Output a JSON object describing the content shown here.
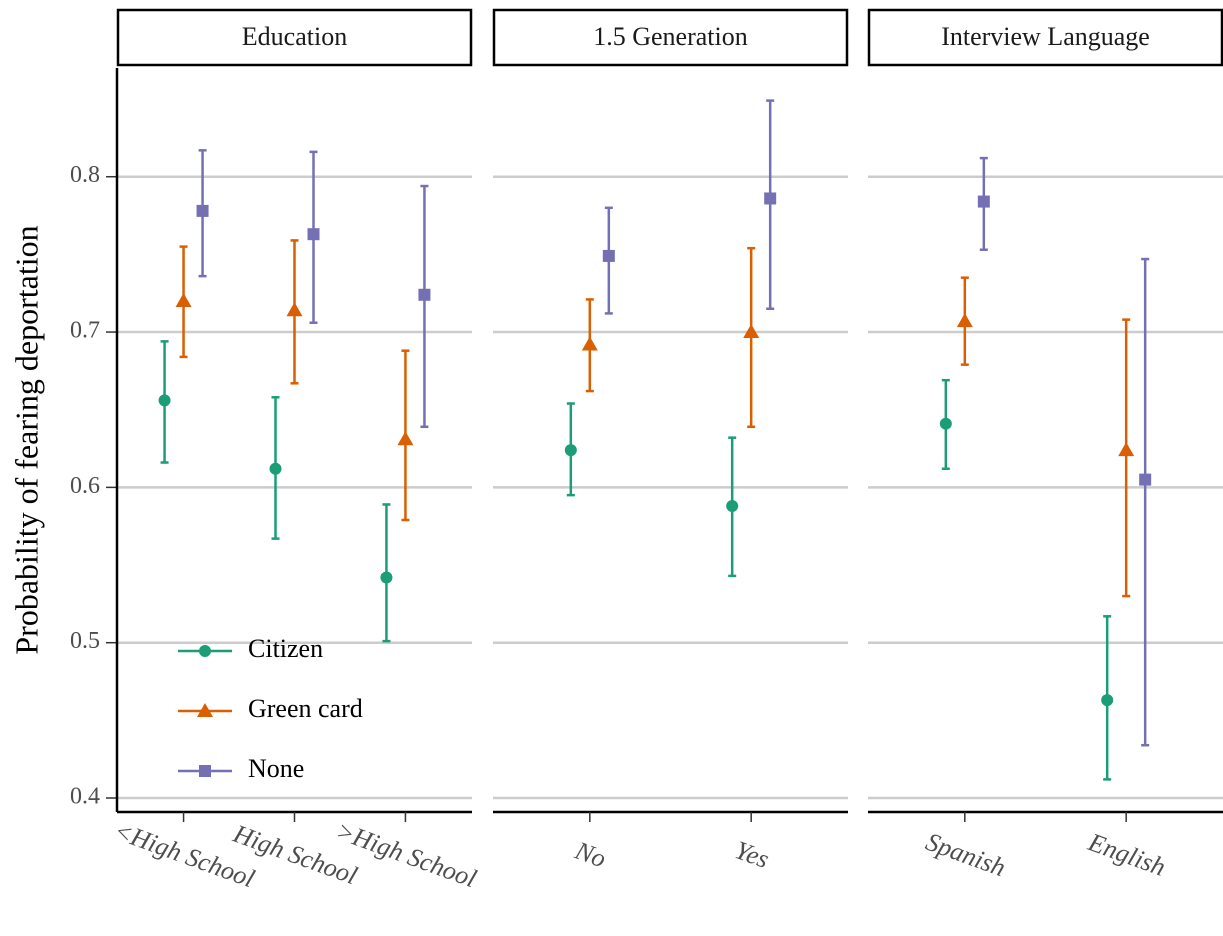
{
  "chart_data": {
    "type": "errorbar",
    "ylabel": "Probability of fearing deportation",
    "ylim": [
      0.391,
      0.87
    ],
    "yticks": [
      0.4,
      0.5,
      0.6,
      0.7,
      0.8
    ],
    "grid": true,
    "legend": "bottom-left",
    "facets": [
      {
        "title": "Education",
        "categories": [
          "<High School",
          "High School",
          ">High School"
        ]
      },
      {
        "title": "1.5 Generation",
        "categories": [
          "No",
          "Yes"
        ]
      },
      {
        "title": "Interview Language",
        "categories": [
          "Spanish",
          "English"
        ]
      }
    ],
    "series": [
      {
        "name": "Citizen",
        "color": "#1b9e77",
        "marker": "circle",
        "values": [
          0.656,
          0.612,
          0.542,
          0.624,
          0.588,
          0.641,
          0.463
        ],
        "lower": [
          0.616,
          0.567,
          0.501,
          0.595,
          0.543,
          0.612,
          0.412
        ],
        "upper": [
          0.694,
          0.658,
          0.589,
          0.654,
          0.632,
          0.669,
          0.517
        ]
      },
      {
        "name": "Green card",
        "color": "#d95f02",
        "marker": "triangle",
        "values": [
          0.72,
          0.714,
          0.631,
          0.692,
          0.7,
          0.707,
          0.624
        ],
        "lower": [
          0.684,
          0.667,
          0.579,
          0.662,
          0.639,
          0.679,
          0.53
        ],
        "upper": [
          0.755,
          0.759,
          0.688,
          0.721,
          0.754,
          0.735,
          0.708
        ]
      },
      {
        "name": "None",
        "color": "#7570b3",
        "marker": "square",
        "values": [
          0.778,
          0.763,
          0.724,
          0.749,
          0.786,
          0.784,
          0.605
        ],
        "lower": [
          0.736,
          0.706,
          0.639,
          0.712,
          0.715,
          0.753,
          0.434
        ],
        "upper": [
          0.817,
          0.816,
          0.794,
          0.78,
          0.849,
          0.812,
          0.747
        ]
      }
    ]
  }
}
